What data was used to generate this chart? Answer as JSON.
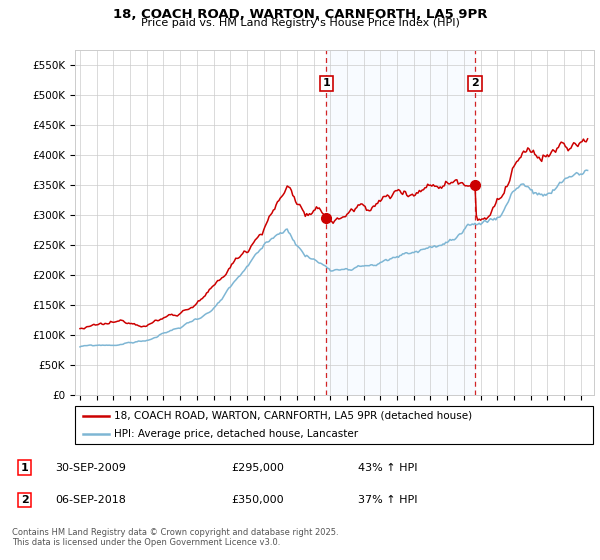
{
  "title": "18, COACH ROAD, WARTON, CARNFORTH, LA5 9PR",
  "subtitle": "Price paid vs. HM Land Registry's House Price Index (HPI)",
  "ylabel_ticks": [
    "£0",
    "£50K",
    "£100K",
    "£150K",
    "£200K",
    "£250K",
    "£300K",
    "£350K",
    "£400K",
    "£450K",
    "£500K",
    "£550K"
  ],
  "ytick_values": [
    0,
    50000,
    100000,
    150000,
    200000,
    250000,
    300000,
    350000,
    400000,
    450000,
    500000,
    550000
  ],
  "ylim": [
    0,
    575000
  ],
  "red_line_color": "#cc0000",
  "blue_line_color": "#7eb6d4",
  "shade_color": "#ddeeff",
  "marker1_x": 2009.75,
  "marker1_y": 295000,
  "marker2_x": 2018.67,
  "marker2_y": 350000,
  "vline1_x": 2009.75,
  "vline2_x": 2018.67,
  "legend_line1": "18, COACH ROAD, WARTON, CARNFORTH, LA5 9PR (detached house)",
  "legend_line2": "HPI: Average price, detached house, Lancaster",
  "annotation1_date": "30-SEP-2009",
  "annotation1_price": "£295,000",
  "annotation1_hpi": "43% ↑ HPI",
  "annotation2_date": "06-SEP-2018",
  "annotation2_price": "£350,000",
  "annotation2_hpi": "37% ↑ HPI",
  "footer": "Contains HM Land Registry data © Crown copyright and database right 2025.\nThis data is licensed under the Open Government Licence v3.0.",
  "background_color": "#ffffff",
  "grid_color": "#cccccc",
  "xlim_left": 1994.7,
  "xlim_right": 2025.8
}
